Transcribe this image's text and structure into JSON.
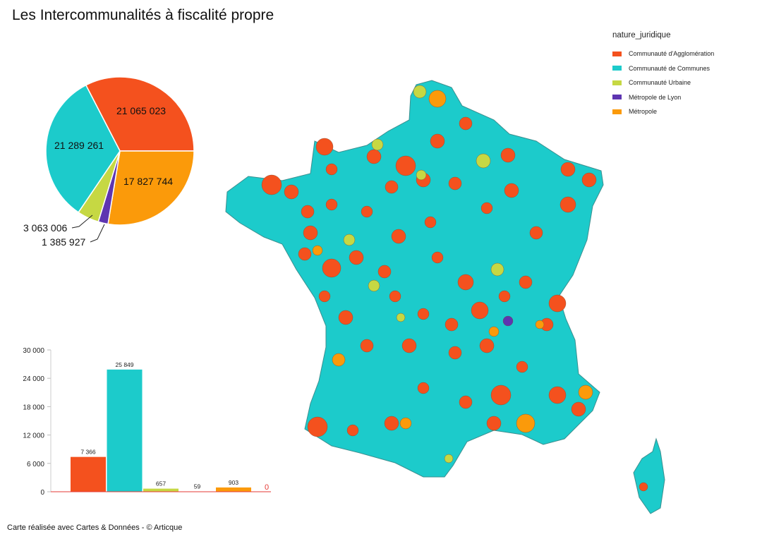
{
  "title": "Les Intercommunalités à fiscalité propre",
  "footer": "Carte réalisée avec Cartes & Données - © Articque",
  "legend": {
    "title": "nature_juridique",
    "items": [
      {
        "label": "Communauté d'Agglomération",
        "color": "#f4511e"
      },
      {
        "label": "Communauté de Communes",
        "color": "#1ccbcb"
      },
      {
        "label": "Communauté Urbaine",
        "color": "#c6d843"
      },
      {
        "label": "Métropole de Lyon",
        "color": "#5e35b1"
      },
      {
        "label": "Métropole",
        "color": "#fb9a0a"
      }
    ]
  },
  "chart_data": [
    {
      "type": "pie",
      "labels": [
        "Communauté d'Agglomération",
        "Métropole",
        "Métropole de Lyon",
        "Communauté Urbaine",
        "Communauté de Communes"
      ],
      "values": [
        21065023,
        17827744,
        1385927,
        3063006,
        21289261
      ],
      "value_labels": [
        "21 065 023",
        "17 827 744",
        "1 385 927",
        "3 063 006",
        "21 289 261"
      ],
      "colors": [
        "#f4511e",
        "#fb9a0a",
        "#5e35b1",
        "#c6d843",
        "#1ccbcb"
      ]
    },
    {
      "type": "bar",
      "categories": [
        "Communauté d'Agglomération",
        "Communauté de Communes",
        "Communauté Urbaine",
        "Métropole de Lyon",
        "Métropole",
        ""
      ],
      "values": [
        7366,
        25849,
        657,
        59,
        903,
        0
      ],
      "value_labels": [
        "7 366",
        "25 849",
        "657",
        "59",
        "903",
        "0"
      ],
      "colors": [
        "#f4511e",
        "#1ccbcb",
        "#c6d843",
        "#5e35b1",
        "#fb9a0a",
        "#e53935"
      ],
      "ylim": [
        0,
        30000
      ],
      "yticks": [
        "0",
        "6 000",
        "12 000",
        "18 000",
        "24 000",
        "30 000"
      ],
      "ytick_values": [
        0,
        6000,
        12000,
        18000,
        24000,
        30000
      ]
    }
  ]
}
